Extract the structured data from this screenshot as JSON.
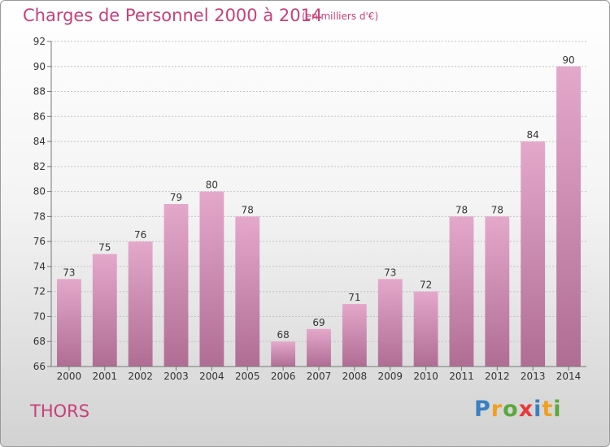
{
  "header": {
    "title": "Charges de Personnel 2000 à 2014",
    "subtitle": "(en milliers d'€)"
  },
  "footer": {
    "town": "THORS",
    "logo_letters": [
      "P",
      "r",
      "o",
      "x",
      "i",
      "t",
      "i"
    ],
    "logo_colors": [
      "#3a7fc1",
      "#f0a020",
      "#5aa83a",
      "#e83a3a",
      "#3a7fc1",
      "#f0a020",
      "#5aa83a"
    ]
  },
  "chart_data": {
    "type": "bar",
    "categories": [
      "2000",
      "2001",
      "2002",
      "2003",
      "2004",
      "2005",
      "2006",
      "2007",
      "2008",
      "2009",
      "2010",
      "2011",
      "2012",
      "2013",
      "2014"
    ],
    "values": [
      73,
      75,
      76,
      79,
      80,
      78,
      68,
      69,
      71,
      73,
      72,
      78,
      78,
      84,
      90
    ],
    "title": "Charges de Personnel 2000 à 2014",
    "subtitle": "(en milliers d'€)",
    "ylim": [
      66,
      92
    ],
    "yticks": [
      66,
      68,
      70,
      72,
      74,
      76,
      78,
      80,
      82,
      84,
      86,
      88,
      90,
      92
    ],
    "grid": true,
    "bar_color": "#d486b0"
  }
}
